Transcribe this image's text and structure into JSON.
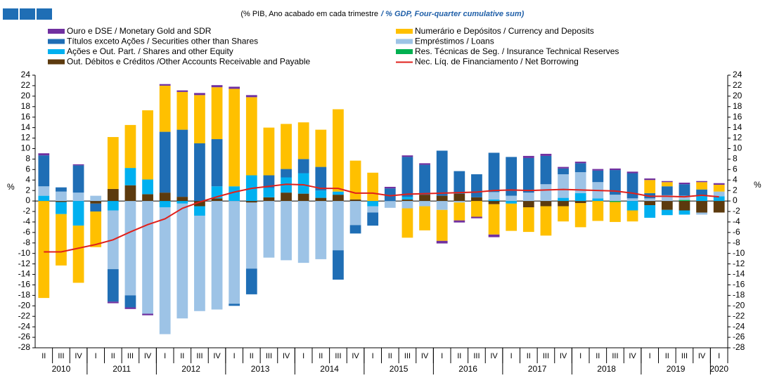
{
  "chart_data": {
    "type": "stacked_bar",
    "subtitle": "(% PIB, Ano acabado em cada trimestre",
    "subtitle_en": "/ % GDP, Four-quarter cumulative sum)",
    "y_label": "%",
    "categories": [
      "II",
      "III",
      "IV",
      "I",
      "II",
      "III",
      "IV",
      "I",
      "II",
      "III",
      "IV",
      "I",
      "II",
      "III",
      "IV",
      "I",
      "II",
      "III",
      "IV",
      "I",
      "II",
      "III",
      "IV",
      "I",
      "II",
      "III",
      "IV",
      "I",
      "II",
      "III",
      "IV",
      "I",
      "II",
      "III",
      "IV",
      "I",
      "II",
      "III",
      "IV",
      "I"
    ],
    "years": [
      "2010",
      "2011",
      "2012",
      "2013",
      "2014",
      "2015",
      "2016",
      "2017",
      "2018",
      "2019",
      "2020"
    ],
    "ylim": [
      -28,
      24
    ],
    "yticks": [
      -28,
      -26,
      -24,
      -22,
      -20,
      -18,
      -16,
      -14,
      -12,
      -10,
      -8,
      -6,
      -4,
      -2,
      0,
      2,
      4,
      6,
      8,
      10,
      12,
      14,
      16,
      18,
      20,
      22,
      24
    ],
    "series": [
      {
        "name": "Ouro e DSE / Monetary Gold and SDR",
        "color": "#7030a0",
        "values": [
          0.4,
          0,
          0.2,
          0,
          -0.3,
          -0.3,
          -0.3,
          0.3,
          0.3,
          0.4,
          0.4,
          0.4,
          0.4,
          0,
          0,
          0,
          0,
          0,
          0,
          0,
          0.3,
          0.3,
          0.3,
          -0.5,
          -0.4,
          -0.3,
          -0.5,
          0,
          0.4,
          0.4,
          0.3,
          0.3,
          0.3,
          0.3,
          0.3,
          0.3,
          0.2,
          0.3,
          0.2,
          0.3
        ]
      },
      {
        "name": "Numerário e Depósitos / Currency and Deposits",
        "color": "#ffc000",
        "values": [
          -18.5,
          -9.8,
          -10.9,
          -6.8,
          9.9,
          8.2,
          13.2,
          8.8,
          7.2,
          9.2,
          9.9,
          18.6,
          14.9,
          9.1,
          8.6,
          7.0,
          7.1,
          15.7,
          7.4,
          5.4,
          0,
          -5.6,
          -4.6,
          -5.9,
          -3.4,
          -3.0,
          -5.8,
          -5.2,
          -4.7,
          -5.6,
          -2.9,
          -4.6,
          -3.8,
          -3.8,
          -2.1,
          2.5,
          0.8,
          0,
          1.4,
          1.3
        ]
      },
      {
        "name": "Títulos exceto Ações / Securities other than Shares",
        "color": "#1f6eb5",
        "values": [
          5.9,
          0.8,
          5.2,
          -1.5,
          -6.2,
          -2.3,
          0,
          11.6,
          12.8,
          11.0,
          9.0,
          -0.4,
          -4.9,
          2.4,
          1.6,
          2.7,
          4.5,
          -5.6,
          -1.6,
          -2.5,
          2.4,
          7.6,
          5.7,
          8.6,
          4.3,
          4.4,
          7.5,
          7.4,
          6.6,
          5.4,
          1.1,
          1.7,
          2.2,
          4.7,
          4.8,
          1.0,
          1.7,
          2.2,
          1.2,
          0
        ]
      },
      {
        "name": "Empréstimos / Loans",
        "color": "#9dc3e6",
        "values": [
          1.8,
          1.8,
          1.6,
          1.0,
          -11.2,
          -18.0,
          -21.5,
          -24.2,
          -21.9,
          -18.2,
          -20.7,
          -19.6,
          -12.6,
          -10.8,
          -11.3,
          -11.8,
          -11.1,
          -9.4,
          -4.6,
          -1.2,
          -1.3,
          -1.4,
          -1.0,
          -1.7,
          -0.3,
          0,
          1.4,
          1.0,
          1.6,
          3.2,
          4.5,
          4.0,
          3.1,
          1.2,
          0.5,
          0.5,
          1.1,
          0.8,
          -0.4,
          0.9
        ]
      },
      {
        "name": "Ações e Out. Part. / Shares and other Equity",
        "color": "#00b0f0",
        "values": [
          1.0,
          -2.3,
          -4.7,
          0,
          -1.8,
          3.3,
          2.8,
          -1.2,
          -0.5,
          -1.8,
          2.3,
          2.8,
          4.9,
          1.8,
          2.9,
          3.9,
          1.4,
          0.6,
          0,
          -1.0,
          0,
          0.5,
          0,
          0,
          0,
          0,
          0.3,
          -0.5,
          0,
          0,
          0.6,
          1.5,
          0.5,
          0,
          -1.8,
          -2.4,
          -1.0,
          -0.8,
          1.0,
          0.9
        ]
      },
      {
        "name": "Res. Técnicas de Seg. / Insurance Technical Reserves",
        "color": "#00b050",
        "values": [
          0,
          0,
          0,
          0,
          0,
          0,
          0,
          0,
          0,
          0,
          0,
          0,
          0,
          0,
          0,
          0,
          0,
          0,
          0,
          0,
          0,
          0,
          0,
          0,
          0,
          0,
          0,
          0,
          0,
          0,
          0,
          0,
          0,
          -0.2,
          0,
          0,
          0,
          0.2,
          0,
          0
        ]
      },
      {
        "name": "Out. Débitos e Créditos /Other Accounts Receivable and Payable",
        "color": "#5c3a0e",
        "values": [
          0,
          -0.2,
          0,
          -0.5,
          2.3,
          3.0,
          1.3,
          1.6,
          0.8,
          -1.0,
          0.5,
          0,
          -0.3,
          0.7,
          1.6,
          1.4,
          0.6,
          1.2,
          0.3,
          0,
          0,
          0.3,
          1.2,
          1.0,
          1.4,
          0.7,
          -0.6,
          0,
          -1.2,
          -1.0,
          -1.0,
          -0.4,
          0,
          0,
          0,
          -0.8,
          -1.7,
          -1.8,
          -2.2,
          -2.2
        ]
      }
    ],
    "line": {
      "name": "Nec. Líq. de Financiamento / Net Borrowing",
      "color": "#e0201b",
      "values": [
        -9.7,
        -9.7,
        -9.0,
        -8.3,
        -7.4,
        -5.9,
        -4.5,
        -3.4,
        -1.4,
        -0.2,
        0.8,
        1.7,
        2.4,
        2.8,
        3.2,
        3.1,
        2.4,
        2.4,
        1.5,
        1.5,
        1.0,
        1.3,
        1.4,
        1.5,
        1.6,
        1.7,
        2.0,
        2.1,
        2.0,
        2.1,
        2.2,
        2.1,
        2.0,
        1.9,
        1.5,
        0.9,
        0.9,
        0.8,
        1.1,
        0.8
      ]
    }
  }
}
